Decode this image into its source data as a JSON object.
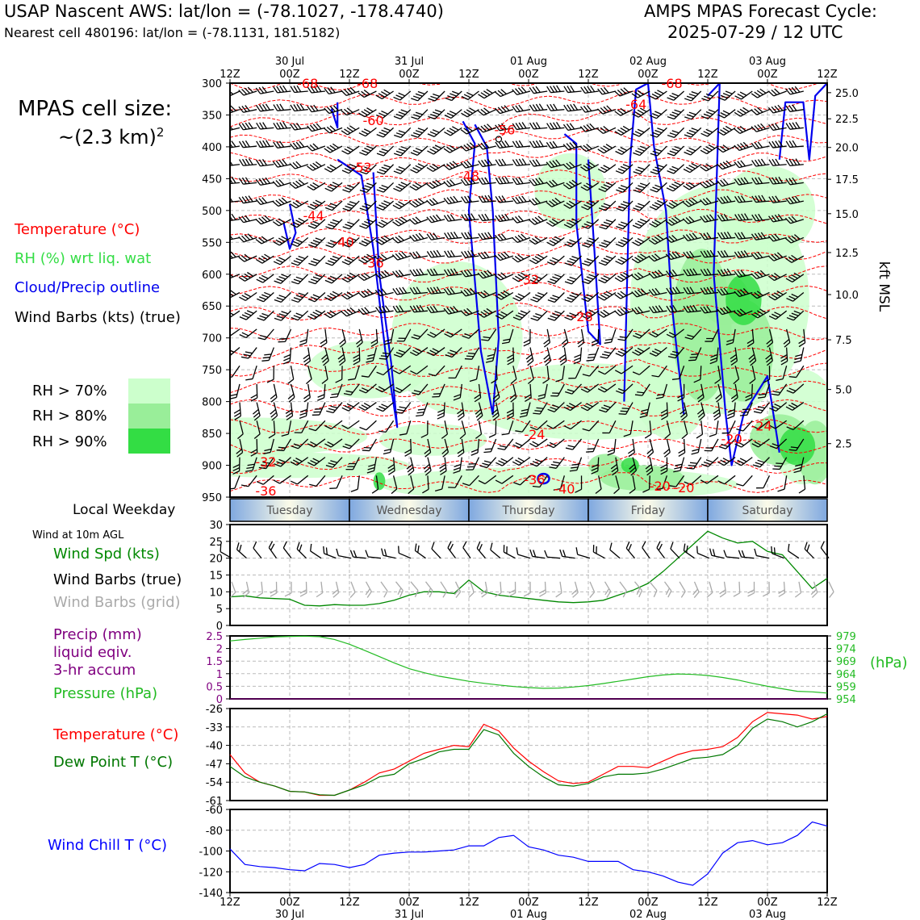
{
  "header": {
    "station_line": "USAP Nascent AWS: lat/lon = (-78.1027, -178.4740)",
    "cell_line": "Nearest cell 480196: lat/lon = (-78.1131, 181.5182)",
    "cycle_line1": "AMPS MPAS Forecast Cycle:",
    "cycle_line2": "2025-07-29 / 12 UTC"
  },
  "left_panel": {
    "cell_size_line1": "MPAS cell size:",
    "cell_size_line2": "~(2.3 km)",
    "cell_size_sup": "2",
    "legend_temperature": "Temperature (°C)",
    "legend_rh": "RH (%) wrt liq. wat",
    "legend_cloud": "Cloud/Precip outline",
    "legend_wind": "Wind Barbs (kts) (true)",
    "rh_keys": [
      {
        "label": "RH > 70%",
        "color": "#ccffcc"
      },
      {
        "label": "RH > 80%",
        "color": "#99ee99"
      },
      {
        "label": "RH > 90%",
        "color": "#33dd44"
      }
    ],
    "local_weekday": "Local Weekday",
    "wind_10m": "Wind at 10m AGL",
    "wind_spd": "Wind Spd (kts)",
    "wind_barbs_true": "Wind Barbs (true)",
    "wind_barbs_grid": "Wind Barbs (grid)",
    "precip_l1": "Precip (mm)",
    "precip_l2": "liquid eqiv.",
    "precip_l3": "3-hr accum",
    "pressure": "Pressure (hPa)",
    "temp2": "Temperature (°C)",
    "dewpoint": "Dew Point T (°C)",
    "windchill": "Wind Chill T (°C)"
  },
  "colors": {
    "temperature": "#ff0000",
    "rh": "#33dd44",
    "cloud": "#0000ee",
    "precip": "#800080",
    "pressure": "#22bb22",
    "dewpoint": "#007700",
    "windchill": "#0000ff",
    "grid_barbs": "#aaaaaa"
  },
  "chart_data": [
    {
      "type": "heatmap",
      "name": "time-height cross section",
      "x_axis": {
        "ticks": [
          "12Z",
          "00Z",
          "12Z",
          "00Z",
          "12Z",
          "00Z",
          "12Z",
          "00Z",
          "12Z",
          "00Z",
          "12Z"
        ],
        "dates": [
          {
            "label": "30 Jul",
            "tick_index": 1
          },
          {
            "label": "31 Jul",
            "tick_index": 3
          },
          {
            "label": "01 Aug",
            "tick_index": 5
          },
          {
            "label": "02 Aug",
            "tick_index": 7
          },
          {
            "label": "03 Aug",
            "tick_index": 9
          }
        ]
      },
      "y_pressure": {
        "ticks": [
          300,
          350,
          400,
          450,
          500,
          550,
          600,
          650,
          700,
          750,
          800,
          850,
          900,
          950
        ],
        "range": [
          300,
          950
        ]
      },
      "y_right": {
        "label": "kft MSL",
        "ticks": [
          {
            "label": "25.0",
            "p": 315
          },
          {
            "label": "22.5",
            "p": 356
          },
          {
            "label": "20.0",
            "p": 401
          },
          {
            "label": "17.5",
            "p": 451
          },
          {
            "label": "15.0",
            "p": 505
          },
          {
            "label": "12.5",
            "p": 566
          },
          {
            "label": "10.0",
            "p": 632
          },
          {
            "label": "7.5",
            "p": 703
          },
          {
            "label": "5.0",
            "p": 781
          },
          {
            "label": "2.5",
            "p": 866
          }
        ]
      },
      "temperature_labels": [
        {
          "text": "-68",
          "t": 13,
          "p": 300
        },
        {
          "text": "-68",
          "t": 23,
          "p": 300
        },
        {
          "text": "-68",
          "t": 74,
          "p": 300
        },
        {
          "text": "-64",
          "t": 68,
          "p": 333
        },
        {
          "text": "-60",
          "t": 24,
          "p": 358
        },
        {
          "text": "-56",
          "t": 46,
          "p": 373
        },
        {
          "text": "-52",
          "t": 22,
          "p": 432
        },
        {
          "text": "-48",
          "t": 40,
          "p": 446
        },
        {
          "text": "-44",
          "t": 14,
          "p": 508
        },
        {
          "text": "-40",
          "t": 19,
          "p": 549
        },
        {
          "text": "-36",
          "t": 24,
          "p": 582
        },
        {
          "text": "-32",
          "t": 50,
          "p": 608
        },
        {
          "text": "-28",
          "t": 59,
          "p": 666
        },
        {
          "text": "-24",
          "t": 51,
          "p": 851
        },
        {
          "text": "-24",
          "t": 89,
          "p": 838
        },
        {
          "text": "-20",
          "t": 84,
          "p": 858
        },
        {
          "text": "-32",
          "t": 6,
          "p": 894
        },
        {
          "text": "-36",
          "t": 6,
          "p": 940
        },
        {
          "text": "-36",
          "t": 51,
          "p": 922
        },
        {
          "text": "-40",
          "t": 56,
          "p": 937
        },
        {
          "text": "-20",
          "t": 72,
          "p": 932
        },
        {
          "text": "-20",
          "t": 76,
          "p": 935
        }
      ]
    },
    {
      "type": "line",
      "name": "wind speed",
      "ylim": [
        0,
        30
      ],
      "yticks": [
        0,
        5,
        10,
        15,
        20,
        25,
        30
      ],
      "x_hours": [
        0,
        6,
        12,
        18,
        24,
        30,
        36,
        42,
        48,
        54,
        60,
        66,
        72,
        78,
        84,
        90,
        96,
        102,
        108,
        114,
        120,
        126,
        132,
        138,
        144,
        150,
        156,
        162,
        168,
        174,
        180,
        186,
        192,
        198,
        204,
        210,
        216,
        222,
        228,
        234,
        240
      ],
      "values": [
        8.5,
        8.8,
        8.2,
        8,
        7.8,
        6,
        5.8,
        6.2,
        6,
        6,
        6.5,
        7.5,
        9,
        10,
        10,
        9.5,
        13.5,
        10,
        9,
        8.5,
        8,
        7.5,
        7,
        6.8,
        7,
        7.5,
        9,
        10.5,
        12.5,
        16,
        20,
        24,
        28,
        26,
        24.5,
        25,
        22,
        21,
        16,
        11,
        14
      ]
    },
    {
      "type": "line",
      "name": "precip and pressure",
      "precip_ylim": [
        0,
        2.5
      ],
      "precip_yticks": [
        0,
        0.5,
        1.0,
        1.5,
        2.0,
        2.5
      ],
      "precip_values": [
        0,
        0,
        0,
        0,
        0,
        0,
        0,
        0,
        0,
        0,
        0,
        0,
        0,
        0,
        0,
        0,
        0,
        0,
        0,
        0,
        0,
        0,
        0,
        0,
        0,
        0,
        0,
        0,
        0,
        0,
        0,
        0,
        0,
        0,
        0,
        0,
        0,
        0,
        0,
        0,
        0
      ],
      "pressure_ylim": [
        954,
        979
      ],
      "pressure_yticks": [
        954,
        959,
        964,
        969,
        974,
        979
      ],
      "pressure_values": [
        977,
        977.6,
        978.1,
        978.6,
        978.8,
        978.9,
        978.7,
        977.6,
        975.7,
        973.3,
        970.8,
        968.3,
        966,
        964.4,
        963,
        962,
        961,
        960.2,
        959.5,
        958.9,
        958.5,
        958.2,
        958.3,
        958.7,
        959.3,
        960.1,
        961,
        961.9,
        962.8,
        963.5,
        963.9,
        963.7,
        963.3,
        962.5,
        961.5,
        960.2,
        959,
        958.0,
        957,
        956.8,
        956.3
      ]
    },
    {
      "type": "line",
      "name": "temperature and dew point",
      "ylim": [
        -61,
        -26
      ],
      "yticks": [
        -61,
        -54,
        -47,
        -40,
        -33,
        -26
      ],
      "temperature": [
        -43.5,
        -50.5,
        -54,
        -55.5,
        -57.5,
        -57.7,
        -59,
        -59,
        -57,
        -54,
        -50.5,
        -49,
        -46,
        -43,
        -41.5,
        -40,
        -40.5,
        -32,
        -34.5,
        -41,
        -46,
        -50,
        -53.5,
        -54.5,
        -54,
        -51,
        -48,
        -48,
        -48.5,
        -46,
        -43.5,
        -42,
        -41.5,
        -40.5,
        -37,
        -31,
        -27.5,
        -28,
        -28.5,
        -30,
        -29
      ],
      "dewpoint": [
        -48,
        -52,
        -54,
        -55.5,
        -57.5,
        -57.7,
        -58.8,
        -59,
        -57,
        -55,
        -52,
        -51,
        -47,
        -45,
        -42.5,
        -41.5,
        -41.5,
        -34,
        -36,
        -43,
        -48,
        -52,
        -55,
        -55.5,
        -54.5,
        -52,
        -51,
        -51,
        -50.5,
        -49,
        -47,
        -45,
        -44.5,
        -43.5,
        -40,
        -33.5,
        -30,
        -31,
        -33,
        -31,
        -28
      ]
    },
    {
      "type": "line",
      "name": "wind chill",
      "ylim": [
        -140,
        -60
      ],
      "yticks": [
        -140,
        -120,
        -100,
        -80,
        -60
      ],
      "values": [
        -98,
        -113,
        -115,
        -116,
        -118,
        -119,
        -112,
        -113,
        -116,
        -113,
        -104,
        -102,
        -101,
        -101,
        -100,
        -99,
        -95,
        -95,
        -87,
        -85,
        -96,
        -99,
        -104,
        -106,
        -110,
        -110,
        -110,
        -118,
        -120,
        -124,
        -130,
        -133,
        -122,
        -102,
        -92,
        -90,
        -94,
        -92,
        -85,
        -72,
        -76
      ]
    }
  ],
  "weekday_bar": {
    "days": [
      "Tuesday",
      "Wednesday",
      "Thursday",
      "Friday",
      "Saturday"
    ]
  }
}
